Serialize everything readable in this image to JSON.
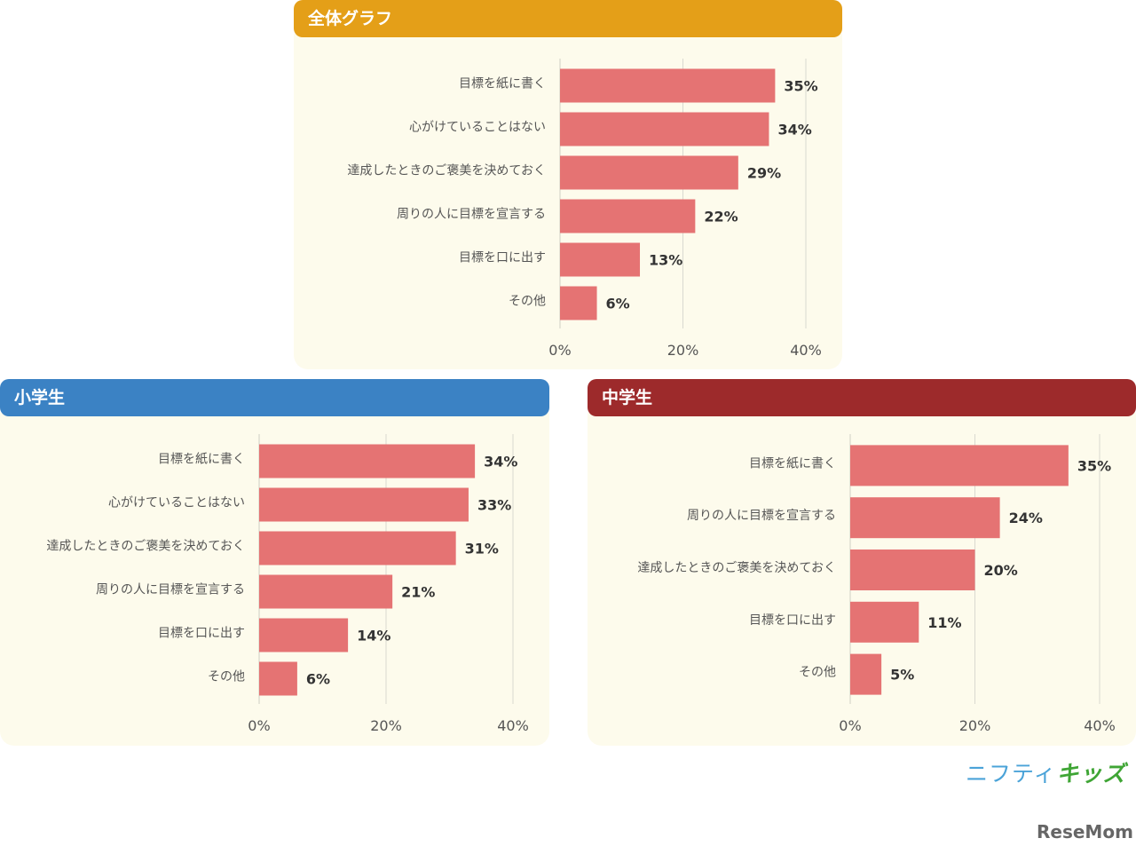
{
  "colors": {
    "bar": "#e57373",
    "grid": "#d9d9d0",
    "overall": "#e49f18",
    "elementary": "#3b82c4",
    "junior": "#9d2a2b"
  },
  "chart_data": [
    {
      "type": "bar",
      "orientation": "horizontal",
      "title": "全体グラフ",
      "categories": [
        "目標を紙に書く",
        "心がけていることはない",
        "達成したときのご褒美を決めておく",
        "周りの人に目標を宣言する",
        "目標を口に出す",
        "その他"
      ],
      "values": [
        35,
        34,
        29,
        22,
        13,
        6
      ],
      "value_labels": [
        "35%",
        "34%",
        "29%",
        "22%",
        "13%",
        "6%"
      ],
      "xlim": [
        0,
        40
      ],
      "ticks": [
        0,
        20,
        40
      ],
      "tick_labels": [
        "0%",
        "20%",
        "40%"
      ],
      "grid": true
    },
    {
      "type": "bar",
      "orientation": "horizontal",
      "title": "小学生",
      "categories": [
        "目標を紙に書く",
        "心がけていることはない",
        "達成したときのご褒美を決めておく",
        "周りの人に目標を宣言する",
        "目標を口に出す",
        "その他"
      ],
      "values": [
        34,
        33,
        31,
        21,
        14,
        6
      ],
      "value_labels": [
        "34%",
        "33%",
        "31%",
        "21%",
        "14%",
        "6%"
      ],
      "xlim": [
        0,
        40
      ],
      "ticks": [
        0,
        20,
        40
      ],
      "tick_labels": [
        "0%",
        "20%",
        "40%"
      ],
      "grid": true
    },
    {
      "type": "bar",
      "orientation": "horizontal",
      "title": "中学生",
      "categories": [
        "目標を紙に書く",
        "周りの人に目標を宣言する",
        "達成したときのご褒美を決めておく",
        "目標を口に出す",
        "その他"
      ],
      "values": [
        35,
        24,
        20,
        11,
        5
      ],
      "value_labels": [
        "35%",
        "24%",
        "20%",
        "11%",
        "5%"
      ],
      "xlim": [
        0,
        40
      ],
      "ticks": [
        0,
        20,
        40
      ],
      "tick_labels": [
        "0%",
        "20%",
        "40%"
      ],
      "grid": true
    }
  ],
  "logos": {
    "nifty": "ニフティ",
    "kids": "キッズ",
    "resemom": "ReseMom"
  }
}
